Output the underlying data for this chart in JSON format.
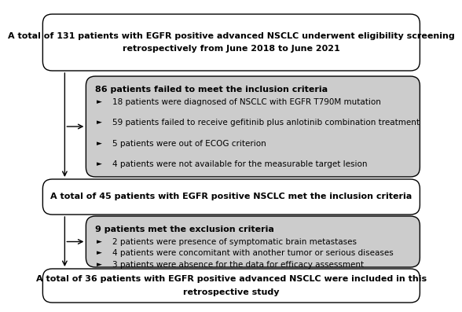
{
  "bg_color": "#ffffff",
  "border_color": "#000000",
  "fill_white": "#ffffff",
  "fill_gray": "#cccccc",
  "text_color": "#000000",
  "arrow_color": "#000000",
  "top_box": {
    "text": "A total of 131 patients with EGFR positive advanced NSCLC underwent eligibility screening\nretrospectively from June 2018 to June 2021",
    "fontsize": 8.0,
    "bold": true
  },
  "excl1_box": {
    "title": "86 patients failed to meet the inclusion criteria",
    "title_fontsize": 8.0,
    "bullets": [
      "18 patients were diagnosed of NSCLC with EGFR T790M mutation",
      "59 patients failed to receive gefitinib plus anlotinib combination treatment",
      "5 patients were out of ECOG criterion",
      "4 patients were not available for the measurable target lesion"
    ],
    "bullet_fontsize": 7.5
  },
  "mid_box": {
    "text": "A total of 45 patients with EGFR positive NSCLC met the inclusion criteria",
    "fontsize": 8.0,
    "bold": true
  },
  "excl2_box": {
    "title": "9 patients met the exclusion criteria",
    "title_fontsize": 8.0,
    "bullets": [
      "2 patients were presence of symptomatic brain metastases",
      "4 patients were concomitant with another tumor or serious diseases",
      "3 patients were absence for the data for efficacy assessment"
    ],
    "bullet_fontsize": 7.5
  },
  "bot_box": {
    "text": "A total of 36 patients with EGFR positive advanced NSCLC were included in this\nretrospective study",
    "fontsize": 8.0,
    "bold": true
  }
}
